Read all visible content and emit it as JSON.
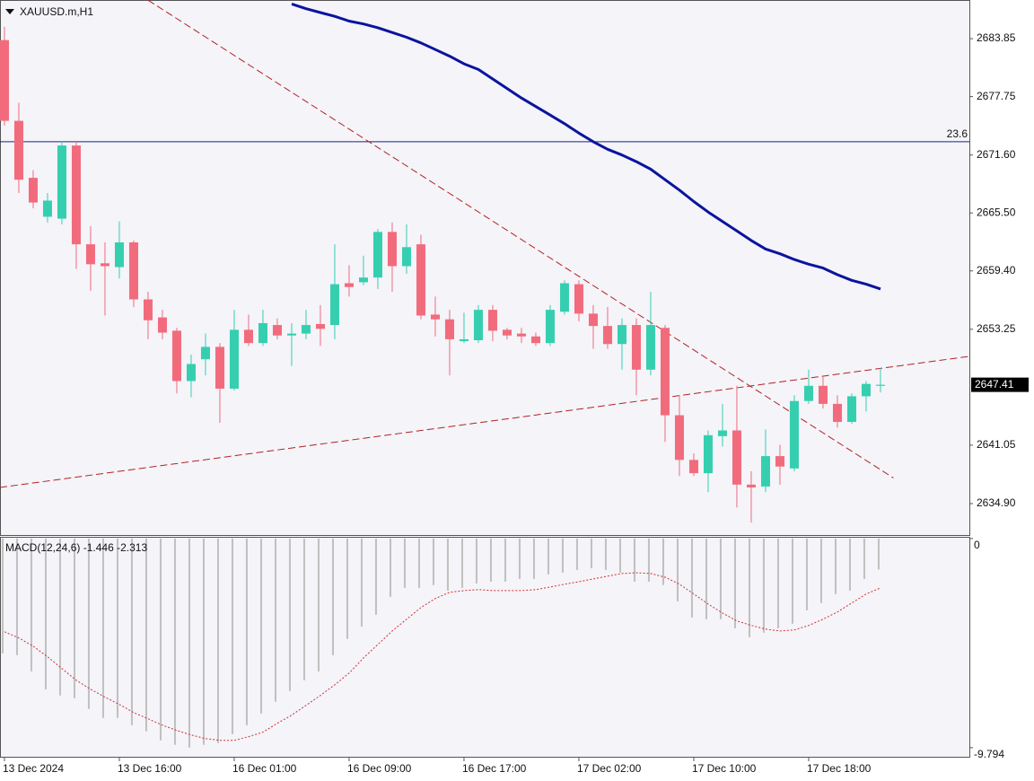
{
  "chart_data": [
    {
      "type": "candlestick",
      "title": "XAUUSD.m,H1",
      "categories": [
        "13 Dec 2024",
        null,
        null,
        null,
        null,
        null,
        null,
        null,
        "13 Dec 16:00",
        null,
        null,
        null,
        null,
        null,
        null,
        null,
        "16 Dec 01:00",
        null,
        null,
        null,
        null,
        null,
        null,
        null,
        "16 Dec 09:00",
        null,
        null,
        null,
        null,
        null,
        null,
        null,
        "16 Dec 17:00",
        null,
        null,
        null,
        null,
        null,
        null,
        null,
        "17 Dec 02:00",
        null,
        null,
        null,
        null,
        null,
        null,
        null,
        "17 Dec 10:00",
        null,
        null,
        null,
        null,
        null,
        null,
        null,
        "17 Dec 18:00",
        null,
        null,
        null,
        null,
        null
      ],
      "open": [
        2683.7,
        2675.2,
        2669.2,
        2665.1,
        2664.9,
        2672.6,
        2662.2,
        2660.2,
        2659.8,
        2662.4,
        2656.4,
        2654.5,
        2653.1,
        2647.8,
        2650.1,
        2651.4,
        2647.0,
        2653.2,
        2651.8,
        2653.7,
        2652.6,
        2652.8,
        2653.8,
        2653.7,
        2658.1,
        2658.2,
        2658.7,
        2663.5,
        2659.9,
        2662.2,
        2654.8,
        2654.3,
        2652.0,
        2652.1,
        2655.3,
        2653.2,
        2652.8,
        2652.5,
        2651.8,
        2655.1,
        2658.0,
        2654.9,
        2653.6,
        2651.7,
        2653.7,
        2649.0,
        2653.4,
        2644.2,
        2639.5,
        2638.1,
        2642.0,
        2642.6,
        2636.9,
        2636.7,
        2639.9,
        2638.6,
        2645.7,
        2647.3,
        2645.4,
        2643.5,
        2646.2,
        2647.3
      ],
      "high": [
        2685.1,
        2677.1,
        2670.0,
        2667.6,
        2673.0,
        2673.0,
        2664.1,
        2662.4,
        2664.6,
        2662.6,
        2657.2,
        2655.3,
        2653.4,
        2650.6,
        2652.8,
        2651.8,
        2655.3,
        2654.8,
        2655.3,
        2654.4,
        2653.9,
        2655.3,
        2655.8,
        2662.2,
        2660.0,
        2661.0,
        2663.8,
        2664.5,
        2664.3,
        2663.2,
        2656.7,
        2655.3,
        2655.0,
        2655.8,
        2655.8,
        2653.4,
        2653.4,
        2652.9,
        2655.8,
        2658.4,
        2658.4,
        2655.8,
        2655.6,
        2654.4,
        2654.4,
        2657.2,
        2653.7,
        2646.3,
        2640.2,
        2642.6,
        2645.4,
        2647.3,
        2638.3,
        2642.7,
        2641.1,
        2646.3,
        2649.0,
        2648.4,
        2646.3,
        2646.5,
        2647.8,
        2649.2
      ],
      "low": [
        2674.7,
        2667.6,
        2666.0,
        2664.5,
        2664.3,
        2659.6,
        2657.3,
        2654.7,
        2658.6,
        2655.6,
        2652.2,
        2652.2,
        2646.5,
        2646.1,
        2648.4,
        2643.4,
        2646.8,
        2651.5,
        2651.5,
        2652.2,
        2649.4,
        2652.2,
        2651.5,
        2652.2,
        2656.7,
        2657.9,
        2657.5,
        2657.2,
        2659.1,
        2654.3,
        2652.5,
        2648.4,
        2651.8,
        2651.8,
        2652.0,
        2652.2,
        2651.8,
        2651.5,
        2651.5,
        2654.8,
        2654.1,
        2651.2,
        2651.2,
        2649.0,
        2646.3,
        2648.4,
        2641.4,
        2637.8,
        2637.8,
        2636.1,
        2640.9,
        2634.5,
        2632.9,
        2636.1,
        2636.9,
        2638.3,
        2645.4,
        2644.9,
        2642.9,
        2643.3,
        2644.6,
        2646.6
      ],
      "close": [
        2675.2,
        2669.0,
        2666.6,
        2666.8,
        2672.6,
        2662.2,
        2660.1,
        2659.9,
        2662.4,
        2656.4,
        2654.2,
        2652.9,
        2647.8,
        2649.6,
        2651.4,
        2647.0,
        2653.2,
        2651.8,
        2653.9,
        2652.6,
        2652.8,
        2653.7,
        2653.3,
        2658.0,
        2657.7,
        2658.7,
        2663.5,
        2659.9,
        2661.9,
        2654.7,
        2654.3,
        2652.2,
        2652.2,
        2655.3,
        2653.1,
        2652.6,
        2652.5,
        2651.8,
        2655.3,
        2658.1,
        2654.9,
        2653.6,
        2651.7,
        2653.7,
        2649.0,
        2653.7,
        2644.2,
        2639.5,
        2638.1,
        2642.1,
        2642.6,
        2636.9,
        2636.6,
        2639.9,
        2638.8,
        2645.7,
        2647.3,
        2645.4,
        2643.5,
        2646.2,
        2647.5,
        2647.41
      ],
      "up_color": "#35cfb0",
      "down_color": "#f26b7c",
      "xlim": [
        -0.31,
        67.19
      ],
      "ylim": [
        2631.59,
        2687.92
      ],
      "yticks": [
        2683.85,
        2677.75,
        {
          "value": 2671.6,
          "label": "2671.60"
        },
        {
          "value": 2665.5,
          "label": "2665.50"
        },
        {
          "value": 2659.4,
          "label": "2659.40"
        },
        2653.25,
        2641.05,
        {
          "value": 2634.9,
          "label": "2634.90"
        }
      ],
      "last_price": 2647.41,
      "moving_average": {
        "color": "#0a149e",
        "values": [
          null,
          null,
          null,
          null,
          null,
          null,
          null,
          null,
          null,
          null,
          null,
          null,
          null,
          null,
          null,
          null,
          null,
          null,
          null,
          null,
          2687.5,
          2687.0,
          2686.6,
          2686.2,
          2685.7,
          2685.4,
          2685.0,
          2684.5,
          2684.0,
          2683.4,
          2682.7,
          2682.0,
          2681.2,
          2680.6,
          2679.6,
          2678.6,
          2677.6,
          2676.7,
          2675.8,
          2674.9,
          2673.9,
          2673.0,
          2672.2,
          2671.6,
          2670.9,
          2670.1,
          2669.0,
          2667.9,
          2666.7,
          2665.6,
          2664.6,
          2663.6,
          2662.6,
          2661.7,
          2661.2,
          2660.6,
          2660.1,
          2659.7,
          2659.0,
          2658.4,
          2658.0,
          2657.5
        ]
      },
      "hline": {
        "value": 2673.0,
        "label": "23.6",
        "color": "#1a237e"
      },
      "trendlines": [
        {
          "from": [
            10,
            2687.9
          ],
          "to": [
            61.9,
            2637.6
          ],
          "color": "#b22222"
        },
        {
          "from": [
            -0.31,
            2636.6
          ],
          "to": [
            67.19,
            2650.4
          ],
          "color": "#b22222"
        }
      ]
    },
    {
      "type": "macd",
      "title": "MACD(12,24,6)",
      "ylim": [
        -10.22,
        0.08
      ],
      "yticks": [
        0,
        -9.794
      ],
      "histogram": {
        "color": "#c0c0c0",
        "values": [
          -5.38,
          -5.46,
          -6.22,
          -7.06,
          -7.35,
          -7.48,
          -7.98,
          -8.4,
          -8.4,
          -8.74,
          -9.03,
          -9.45,
          -9.66,
          -9.79,
          -9.66,
          -9.58,
          -9.16,
          -8.74,
          -8.2,
          -7.64,
          -7.14,
          -6.64,
          -6.22,
          -5.46,
          -4.7,
          -4.12,
          -3.57,
          -2.73,
          -2.31,
          -2.31,
          -2.18,
          -2.44,
          -2.31,
          -2.1,
          -2.02,
          -2.02,
          -1.89,
          -1.89,
          -1.68,
          -1.6,
          -1.47,
          -1.39,
          -1.47,
          -1.6,
          -2.02,
          -2.02,
          -2.18,
          -2.94,
          -3.7,
          -3.78,
          -3.78,
          -4.2,
          -4.62,
          -4.41,
          -4.2,
          -3.99,
          -3.36,
          -3.02,
          -2.6,
          -2.44,
          -1.89,
          -1.446
        ]
      },
      "signal": {
        "color": "#d32f2f",
        "values": [
          -4.37,
          -4.66,
          -5.04,
          -5.54,
          -6.09,
          -6.64,
          -7.06,
          -7.43,
          -7.77,
          -8.15,
          -8.44,
          -8.74,
          -8.99,
          -9.2,
          -9.37,
          -9.45,
          -9.45,
          -9.28,
          -9.07,
          -8.65,
          -8.27,
          -7.81,
          -7.35,
          -6.85,
          -6.3,
          -5.59,
          -4.96,
          -4.33,
          -3.78,
          -3.23,
          -2.81,
          -2.52,
          -2.44,
          -2.39,
          -2.44,
          -2.44,
          -2.44,
          -2.39,
          -2.27,
          -2.14,
          -2.02,
          -1.89,
          -1.76,
          -1.64,
          -1.6,
          -1.64,
          -1.81,
          -2.14,
          -2.6,
          -3.07,
          -3.49,
          -3.86,
          -4.07,
          -4.24,
          -4.33,
          -4.28,
          -4.07,
          -3.78,
          -3.44,
          -3.02,
          -2.6,
          -2.313
        ]
      }
    }
  ]
}
